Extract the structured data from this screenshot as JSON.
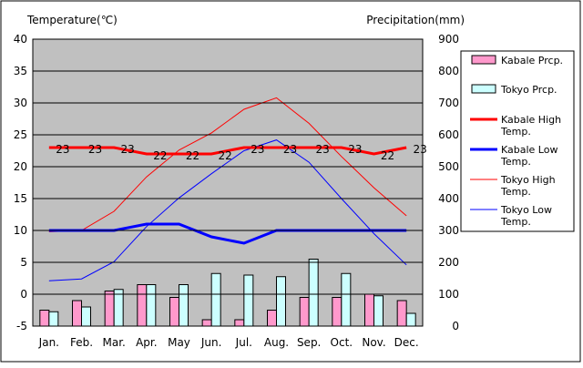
{
  "chart_data": {
    "type": "bar+line",
    "left_axis_label": "Temperature(℃)",
    "right_axis_label": "Precipitation(mm)",
    "left_ylim": [
      -5,
      40
    ],
    "right_ylim": [
      0,
      900
    ],
    "left_ticks": [
      "-5",
      "0",
      "5",
      "10",
      "15",
      "20",
      "25",
      "30",
      "35",
      "40"
    ],
    "right_ticks": [
      "0",
      "100",
      "200",
      "300",
      "400",
      "500",
      "600",
      "700",
      "800",
      "900"
    ],
    "categories": [
      "Jan.",
      "Feb.",
      "Mar.",
      "Apr.",
      "May",
      "Jun.",
      "Jul.",
      "Aug.",
      "Sep.",
      "Oct.",
      "Nov.",
      "Dec."
    ],
    "colors": {
      "kabale_prcp": "#ff99cc",
      "tokyo_prcp": "#ccffff",
      "kabale_high": "#ff0000",
      "kabale_low": "#0000ff",
      "tokyo_high": "#ff0000",
      "tokyo_low": "#0000ff",
      "plot_bg": "#c0c0c0"
    },
    "series": [
      {
        "name": "Kabale Prcp.",
        "axis": "right",
        "kind": "bar",
        "values": [
          50,
          80,
          110,
          130,
          90,
          20,
          20,
          50,
          90,
          90,
          100,
          80
        ]
      },
      {
        "name": "Tokyo Prcp.",
        "axis": "right",
        "kind": "bar",
        "values": [
          45,
          60,
          115,
          130,
          130,
          165,
          160,
          155,
          210,
          165,
          95,
          40
        ]
      },
      {
        "name": "Kabale High Temp.",
        "axis": "left",
        "kind": "line",
        "values": [
          23,
          23,
          23,
          22,
          22,
          22,
          23,
          23,
          23,
          23,
          22,
          23
        ]
      },
      {
        "name": "Kabale Low Temp.",
        "axis": "left",
        "kind": "line",
        "values": [
          10,
          10,
          10,
          11,
          11,
          9,
          8,
          10,
          10,
          10,
          10,
          10
        ]
      },
      {
        "name": "Tokyo High Temp.",
        "axis": "left",
        "kind": "line",
        "values": [
          9.8,
          10,
          13,
          18.4,
          22.6,
          25.3,
          29,
          30.8,
          26.8,
          21.6,
          16.7,
          12.3
        ]
      },
      {
        "name": "Tokyo Low Temp.",
        "axis": "left",
        "kind": "line",
        "values": [
          2.1,
          2.4,
          5.1,
          10.6,
          15.1,
          18.9,
          22.5,
          24.2,
          20.7,
          15,
          9.5,
          4.6
        ]
      }
    ],
    "data_labels": {
      "series": "Kabale High Temp.",
      "values": [
        "23",
        "23",
        "23",
        "22",
        "22",
        "22",
        "23",
        "23",
        "23",
        "23",
        "22",
        "23"
      ]
    },
    "legend_placement": "right"
  }
}
